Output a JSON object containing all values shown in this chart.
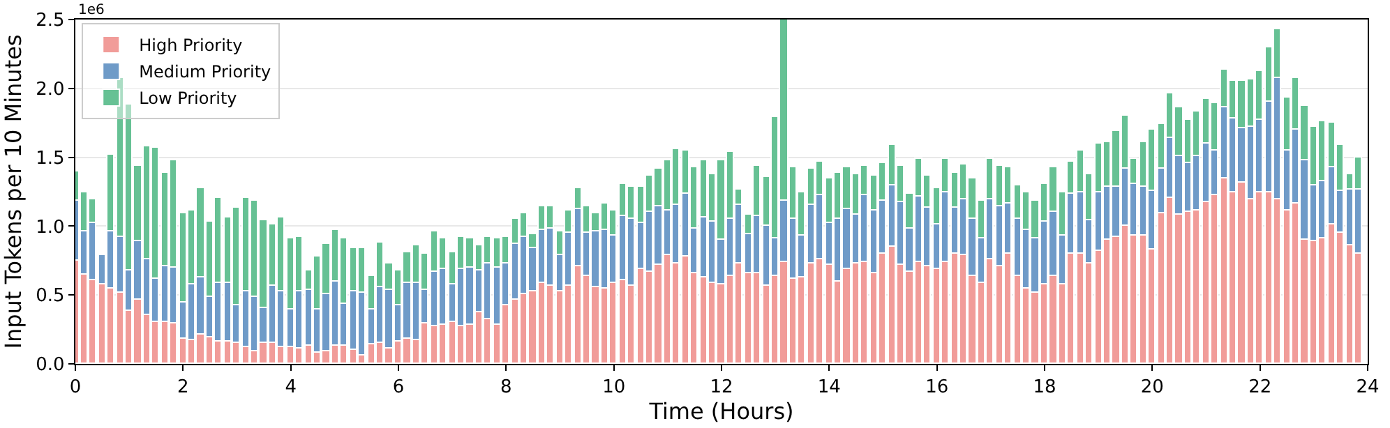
{
  "chart_data": {
    "type": "bar",
    "stacked": true,
    "xlabel": "Time (Hours)",
    "ylabel": "Input Tokens per 10 Minutes",
    "annotations": [
      "1e6"
    ],
    "x": [
      0,
      0.167,
      0.333,
      0.5,
      0.667,
      0.833,
      1,
      1.167,
      1.333,
      1.5,
      1.667,
      1.833,
      2,
      2.167,
      2.333,
      2.5,
      2.667,
      2.833,
      3,
      3.167,
      3.333,
      3.5,
      3.667,
      3.833,
      4,
      4.167,
      4.333,
      4.5,
      4.667,
      4.833,
      5,
      5.167,
      5.333,
      5.5,
      5.667,
      5.833,
      6,
      6.167,
      6.333,
      6.5,
      6.667,
      6.833,
      7,
      7.167,
      7.333,
      7.5,
      7.667,
      7.833,
      8,
      8.167,
      8.333,
      8.5,
      8.667,
      8.833,
      9,
      9.167,
      9.333,
      9.5,
      9.667,
      9.833,
      10,
      10.167,
      10.333,
      10.5,
      10.667,
      10.833,
      11,
      11.167,
      11.333,
      11.5,
      11.667,
      11.833,
      12,
      12.167,
      12.333,
      12.5,
      12.667,
      12.833,
      13,
      13.167,
      13.333,
      13.5,
      13.667,
      13.833,
      14,
      14.167,
      14.333,
      14.5,
      14.667,
      14.833,
      15,
      15.167,
      15.333,
      15.5,
      15.667,
      15.833,
      16,
      16.167,
      16.333,
      16.5,
      16.667,
      16.833,
      17,
      17.167,
      17.333,
      17.5,
      17.667,
      17.833,
      18,
      18.167,
      18.333,
      18.5,
      18.667,
      18.833,
      19,
      19.167,
      19.333,
      19.5,
      19.667,
      19.833,
      20,
      20.167,
      20.333,
      20.5,
      20.667,
      20.833,
      21,
      21.167,
      21.333,
      21.5,
      21.667,
      21.833,
      22,
      22.167,
      22.333,
      22.5,
      22.667,
      22.833,
      23,
      23.167,
      23.333,
      23.5,
      23.667,
      23.833
    ],
    "series": [
      {
        "name": "High Priority",
        "color": "#f19c99",
        "values": [
          0.75,
          0.65,
          0.61,
          0.58,
          0.55,
          0.52,
          0.38,
          0.47,
          0.35,
          0.3,
          0.3,
          0.29,
          0.18,
          0.17,
          0.21,
          0.19,
          0.16,
          0.16,
          0.15,
          0.12,
          0.09,
          0.15,
          0.15,
          0.12,
          0.12,
          0.11,
          0.13,
          0.08,
          0.09,
          0.13,
          0.13,
          0.1,
          0.06,
          0.14,
          0.15,
          0.11,
          0.16,
          0.18,
          0.17,
          0.29,
          0.27,
          0.28,
          0.3,
          0.27,
          0.28,
          0.37,
          0.32,
          0.28,
          0.43,
          0.47,
          0.51,
          0.53,
          0.59,
          0.57,
          0.53,
          0.57,
          0.71,
          0.64,
          0.56,
          0.55,
          0.59,
          0.61,
          0.57,
          0.69,
          0.67,
          0.72,
          0.79,
          0.73,
          0.78,
          0.66,
          0.63,
          0.59,
          0.58,
          0.64,
          0.73,
          0.66,
          0.66,
          0.57,
          0.64,
          0.74,
          0.62,
          0.63,
          0.73,
          0.76,
          0.72,
          0.6,
          0.69,
          0.73,
          0.74,
          0.66,
          0.8,
          0.85,
          0.72,
          0.67,
          0.74,
          0.71,
          0.69,
          0.74,
          0.8,
          0.79,
          0.64,
          0.59,
          0.76,
          0.71,
          0.8,
          0.64,
          0.55,
          0.52,
          0.58,
          0.64,
          0.58,
          0.8,
          0.8,
          0.73,
          0.82,
          0.9,
          0.92,
          1.0,
          0.93,
          0.93,
          0.83,
          1.09,
          1.2,
          1.08,
          1.1,
          1.11,
          1.17,
          1.22,
          1.35,
          1.24,
          1.32,
          1.19,
          1.24,
          1.24,
          1.19,
          1.11,
          1.16,
          0.9,
          0.89,
          0.91,
          1.01,
          0.95,
          0.86,
          0.8
        ]
      },
      {
        "name": "Medium Priority",
        "color": "#6f9bc8",
        "values": [
          0.43,
          0.31,
          0.41,
          0.21,
          0.41,
          0.4,
          0.3,
          0.42,
          0.41,
          0.32,
          0.41,
          0.41,
          0.27,
          0.41,
          0.42,
          0.3,
          0.43,
          0.43,
          0.28,
          0.41,
          0.4,
          0.25,
          0.42,
          0.41,
          0.27,
          0.42,
          0.41,
          0.31,
          0.42,
          0.47,
          0.31,
          0.43,
          0.46,
          0.25,
          0.41,
          0.43,
          0.27,
          0.41,
          0.42,
          0.25,
          0.4,
          0.41,
          0.28,
          0.42,
          0.42,
          0.31,
          0.41,
          0.42,
          0.3,
          0.4,
          0.41,
          0.31,
          0.38,
          0.41,
          0.26,
          0.38,
          0.41,
          0.31,
          0.4,
          0.42,
          0.34,
          0.46,
          0.48,
          0.33,
          0.43,
          0.42,
          0.32,
          0.42,
          0.45,
          0.32,
          0.43,
          0.44,
          0.32,
          0.41,
          0.42,
          0.28,
          0.41,
          0.43,
          0.27,
          0.44,
          0.43,
          0.3,
          0.42,
          0.46,
          0.3,
          0.45,
          0.43,
          0.35,
          0.48,
          0.45,
          0.38,
          0.45,
          0.45,
          0.31,
          0.47,
          0.42,
          0.32,
          0.5,
          0.33,
          0.4,
          0.41,
          0.32,
          0.43,
          0.43,
          0.36,
          0.41,
          0.42,
          0.39,
          0.45,
          0.46,
          0.35,
          0.43,
          0.44,
          0.31,
          0.43,
          0.39,
          0.37,
          0.42,
          0.38,
          0.36,
          0.43,
          0.33,
          0.44,
          0.43,
          0.36,
          0.4,
          0.43,
          0.33,
          0.51,
          0.54,
          0.39,
          0.53,
          0.53,
          0.66,
          0.88,
          0.44,
          0.54,
          0.58,
          0.41,
          0.42,
          0.42,
          0.31,
          0.41,
          0.47
        ]
      },
      {
        "name": "Low Priority",
        "color": "#66c194",
        "values": [
          0.22,
          0.28,
          0.17,
          null,
          0.56,
          1.15,
          1.2,
          0.55,
          0.82,
          0.95,
          0.68,
          0.78,
          0.64,
          0.53,
          0.65,
          0.54,
          0.61,
          0.47,
          0.7,
          0.67,
          0.69,
          0.64,
          0.44,
          0.53,
          0.52,
          0.39,
          0.14,
          0.39,
          0.36,
          0.37,
          0.47,
          0.31,
          0.32,
          0.25,
          0.32,
          0.19,
          0.25,
          0.22,
          0.27,
          0.26,
          0.29,
          0.22,
          0.23,
          0.23,
          0.21,
          0.18,
          0.19,
          0.21,
          0.19,
          0.18,
          0.17,
          0.1,
          0.17,
          0.16,
          0.17,
          0.16,
          0.16,
          0.19,
          0.13,
          0.19,
          0.18,
          0.24,
          0.24,
          0.27,
          0.27,
          0.28,
          0.37,
          0.41,
          0.32,
          0.45,
          0.42,
          0.35,
          0.58,
          0.49,
          0.12,
          0.14,
          0.37,
          0.36,
          0.88,
          1.32,
          0.38,
          0.32,
          0.27,
          0.25,
          0.33,
          0.34,
          0.31,
          0.3,
          0.22,
          0.26,
          0.28,
          0.29,
          0.27,
          0.25,
          0.28,
          0.24,
          0.27,
          0.25,
          0.26,
          0.26,
          0.3,
          0.27,
          0.3,
          0.3,
          0.27,
          0.25,
          0.27,
          0.27,
          0.28,
          0.33,
          0.32,
          0.24,
          0.31,
          0.34,
          0.35,
          0.32,
          0.4,
          0.38,
          0.18,
          0.32,
          0.44,
          0.32,
          0.32,
          0.35,
          0.31,
          0.32,
          0.32,
          0.34,
          0.28,
          0.27,
          0.34,
          0.34,
          0.36,
          0.4,
          0.36,
          0.38,
          0.37,
          0.39,
          0.42,
          0.43,
          0.32,
          0.33,
          0.11,
          0.23
        ]
      }
    ],
    "xlim": [
      0,
      24
    ],
    "xticks": [
      0,
      2,
      4,
      6,
      8,
      10,
      12,
      14,
      16,
      18,
      20,
      22,
      24
    ],
    "ylim": [
      0,
      2.5
    ],
    "yticks": [
      {
        "value": 0,
        "label": "0.0"
      },
      {
        "value": 0.5,
        "label": "0.5"
      },
      {
        "value": 1,
        "label": "1.0"
      },
      {
        "value": 1.5,
        "label": "1.5"
      },
      {
        "value": 2,
        "label": "2.0"
      },
      {
        "value": 2.5,
        "label": "2.5"
      }
    ],
    "grid": "y",
    "legend": "top left"
  }
}
